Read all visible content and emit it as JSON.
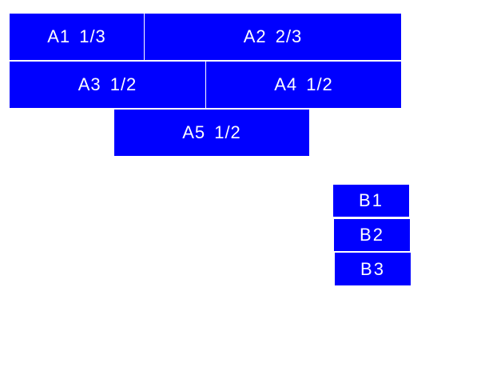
{
  "colors": {
    "box_fill": "#0000ff",
    "text": "#ffffff"
  },
  "group_a": [
    {
      "label": "A1 1/3"
    },
    {
      "label": "A2 2/3"
    },
    {
      "label": "A3 1/2"
    },
    {
      "label": "A4 1/2"
    },
    {
      "label": "A5 1/2"
    }
  ],
  "group_b": [
    {
      "label": "B1"
    },
    {
      "label": "B2"
    },
    {
      "label": "B3"
    }
  ]
}
